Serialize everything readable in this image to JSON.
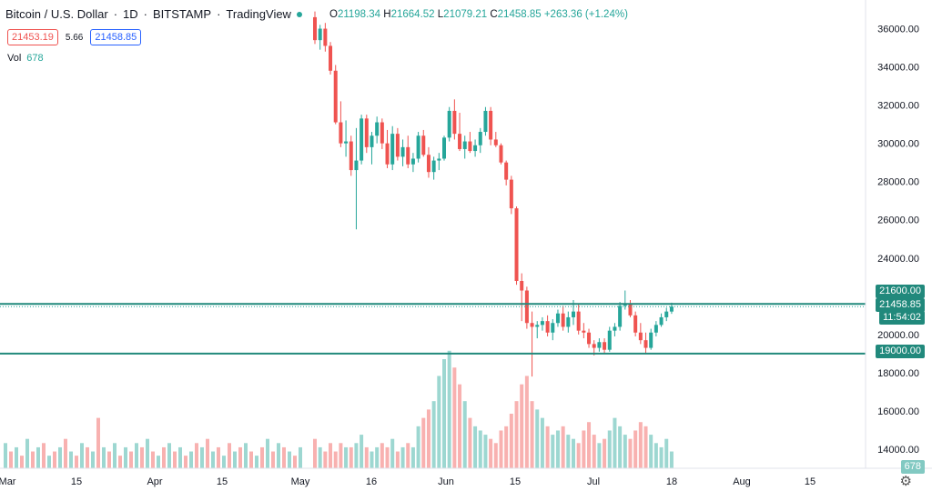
{
  "legend": {
    "symbol": "Bitcoin / U.S. Dollar",
    "interval": "1D",
    "exchange": "BITSTAMP",
    "platform": "TradingView"
  },
  "ohlc": {
    "open_label": "O",
    "open": "21198.34",
    "high_label": "H",
    "high": "21664.52",
    "low_label": "L",
    "low": "21079.21",
    "close_label": "C",
    "close": "21458.85",
    "change": "+263.36 (+1.24%)"
  },
  "quote": {
    "sell": "21453.19",
    "spread": "5.66",
    "buy": "21458.85"
  },
  "volume": {
    "label": "Vol",
    "value": "678"
  },
  "price_axis": {
    "ticks": [
      "36000.00",
      "34000.00",
      "32000.00",
      "30000.00",
      "28000.00",
      "26000.00",
      "24000.00",
      "20000.00",
      "18000.00",
      "16000.00",
      "14000.00"
    ],
    "line_resistance": "21600.00",
    "line_support": "19000.00",
    "last_price": "21458.85",
    "countdown": "11:54:02",
    "volume_label": "678"
  },
  "time_axis": [
    "Mar",
    "15",
    "Apr",
    "15",
    "May",
    "16",
    "Jun",
    "15",
    "Jul",
    "18",
    "Aug",
    "15"
  ],
  "colors": {
    "up": "#26a69a",
    "down": "#ef5350",
    "line": "#21897c"
  },
  "chart_data": {
    "type": "candlestick",
    "ylim": [
      13000,
      37500
    ],
    "levels": [
      21600,
      19000
    ],
    "candles": [
      [
        36600,
        36900,
        35200,
        35400
      ],
      [
        35400,
        36200,
        34900,
        36000
      ],
      [
        36000,
        36300,
        34800,
        35100
      ],
      [
        35100,
        35300,
        33600,
        33800
      ],
      [
        33800,
        34100,
        31000,
        31100
      ],
      [
        31100,
        32200,
        29800,
        30000
      ],
      [
        30000,
        31200,
        29300,
        30100
      ],
      [
        30100,
        30400,
        28300,
        28600
      ],
      [
        28600,
        30800,
        25500,
        29100
      ],
      [
        29100,
        31500,
        28900,
        31300
      ],
      [
        31300,
        31500,
        29500,
        29800
      ],
      [
        29800,
        30600,
        28900,
        30400
      ],
      [
        30400,
        31400,
        30000,
        31100
      ],
      [
        31100,
        31300,
        29700,
        30000
      ],
      [
        30000,
        30700,
        28700,
        28900
      ],
      [
        28900,
        30900,
        28600,
        30500
      ],
      [
        30500,
        30800,
        29100,
        29300
      ],
      [
        29300,
        30200,
        28800,
        29800
      ],
      [
        29800,
        30400,
        28700,
        28900
      ],
      [
        28900,
        29500,
        28500,
        29200
      ],
      [
        29200,
        30600,
        29000,
        30400
      ],
      [
        30400,
        30700,
        29300,
        29400
      ],
      [
        29400,
        29800,
        28200,
        28500
      ],
      [
        28500,
        29300,
        28100,
        29100
      ],
      [
        29100,
        29500,
        28600,
        29200
      ],
      [
        29200,
        30400,
        29100,
        30300
      ],
      [
        30300,
        31900,
        30100,
        31700
      ],
      [
        31700,
        32300,
        30200,
        30500
      ],
      [
        30500,
        31600,
        29600,
        29700
      ],
      [
        29700,
        30400,
        29200,
        30100
      ],
      [
        30100,
        30600,
        29500,
        29600
      ],
      [
        29600,
        30200,
        29300,
        29900
      ],
      [
        29900,
        30800,
        29500,
        30600
      ],
      [
        30600,
        31900,
        30400,
        31700
      ],
      [
        31700,
        31900,
        29900,
        30200
      ],
      [
        30200,
        30600,
        29800,
        29900
      ],
      [
        29900,
        30000,
        28900,
        29000
      ],
      [
        29000,
        29100,
        27800,
        28100
      ],
      [
        28100,
        28300,
        26300,
        26600
      ],
      [
        26600,
        26700,
        22600,
        22800
      ],
      [
        22800,
        23200,
        20700,
        22300
      ],
      [
        22300,
        22500,
        20300,
        20600
      ],
      [
        20600,
        21200,
        17800,
        20400
      ],
      [
        20400,
        20700,
        19800,
        20500
      ],
      [
        20500,
        20900,
        20200,
        20700
      ],
      [
        20700,
        21000,
        19900,
        20100
      ],
      [
        20100,
        20800,
        19700,
        20600
      ],
      [
        20600,
        21300,
        20400,
        21100
      ],
      [
        21100,
        21500,
        20200,
        20400
      ],
      [
        20400,
        21200,
        20100,
        20900
      ],
      [
        20900,
        21800,
        20500,
        21200
      ],
      [
        21200,
        21600,
        20000,
        20200
      ],
      [
        20200,
        20600,
        19800,
        20100
      ],
      [
        20100,
        20300,
        19300,
        19500
      ],
      [
        19500,
        19700,
        18900,
        19300
      ],
      [
        19300,
        19800,
        19100,
        19600
      ],
      [
        19600,
        19800,
        19000,
        19200
      ],
      [
        19200,
        20400,
        19100,
        20200
      ],
      [
        20200,
        20600,
        19900,
        20400
      ],
      [
        20400,
        21700,
        20200,
        21500
      ],
      [
        21500,
        22300,
        21300,
        21600
      ],
      [
        21600,
        21800,
        20900,
        21000
      ],
      [
        21000,
        21200,
        19900,
        20100
      ],
      [
        20100,
        20600,
        19500,
        19700
      ],
      [
        19700,
        20100,
        19000,
        19300
      ],
      [
        19300,
        20300,
        19200,
        20100
      ],
      [
        20100,
        20700,
        19900,
        20500
      ],
      [
        20500,
        21100,
        20400,
        20900
      ],
      [
        20900,
        21400,
        20700,
        21200
      ],
      [
        21198.34,
        21664.52,
        21079.21,
        21458.85
      ]
    ],
    "volumes": [
      7,
      5,
      4,
      6,
      4,
      6,
      5,
      5,
      6,
      8,
      5,
      4,
      5,
      6,
      5,
      7,
      4,
      5,
      6,
      5,
      10,
      12,
      14,
      16,
      22,
      26,
      28,
      24,
      20,
      16,
      12,
      10,
      9,
      8,
      7,
      6,
      9,
      10,
      13,
      16,
      20,
      22,
      16,
      14,
      12,
      10,
      8,
      9,
      10,
      8,
      7,
      6,
      9,
      11,
      8,
      6,
      7,
      9,
      12,
      10,
      8,
      7,
      9,
      11,
      10,
      8,
      6,
      5,
      7,
      4
    ]
  }
}
